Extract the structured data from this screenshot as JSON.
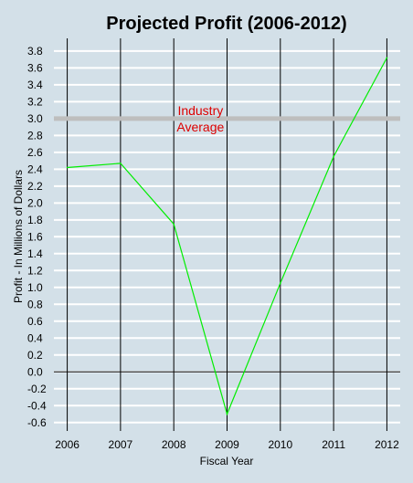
{
  "chart_data": {
    "type": "line",
    "title": "Projected Profit (2006-2012)",
    "xlabel": "Fiscal Year",
    "ylabel": "Profit - In Millions of Dollars",
    "x": [
      2006,
      2007,
      2008,
      2009,
      2010,
      2011,
      2012
    ],
    "series": [
      {
        "values": [
          2.42,
          2.47,
          1.75,
          -0.5,
          1.05,
          2.55,
          3.72
        ],
        "color": "#00ee00"
      }
    ],
    "ylim": [
      -0.7,
      3.95
    ],
    "y_ticks": [
      "-0.6",
      "-0.4",
      "-0.2",
      "0.0",
      "0.2",
      "0.4",
      "0.6",
      "0.8",
      "1.0",
      "1.2",
      "1.4",
      "1.6",
      "1.8",
      "2.0",
      "2.2",
      "2.4",
      "2.6",
      "2.8",
      "3.0",
      "3.2",
      "3.4",
      "3.6",
      "3.8"
    ],
    "x_ticks": [
      "2006",
      "2007",
      "2008",
      "2009",
      "2010",
      "2011",
      "2012"
    ],
    "grid": {
      "horizontal": true,
      "horizontal_color": "#ffffff",
      "vertical_color": "#000000"
    },
    "reference_line": {
      "value": 3.0,
      "label_lines": [
        "Industry",
        "Average"
      ],
      "line_color": "#bebebe",
      "label_color": "#dd0000",
      "label_x": 2008.5
    },
    "zero_line_color": "#000000",
    "background": "#d3e0e8"
  }
}
